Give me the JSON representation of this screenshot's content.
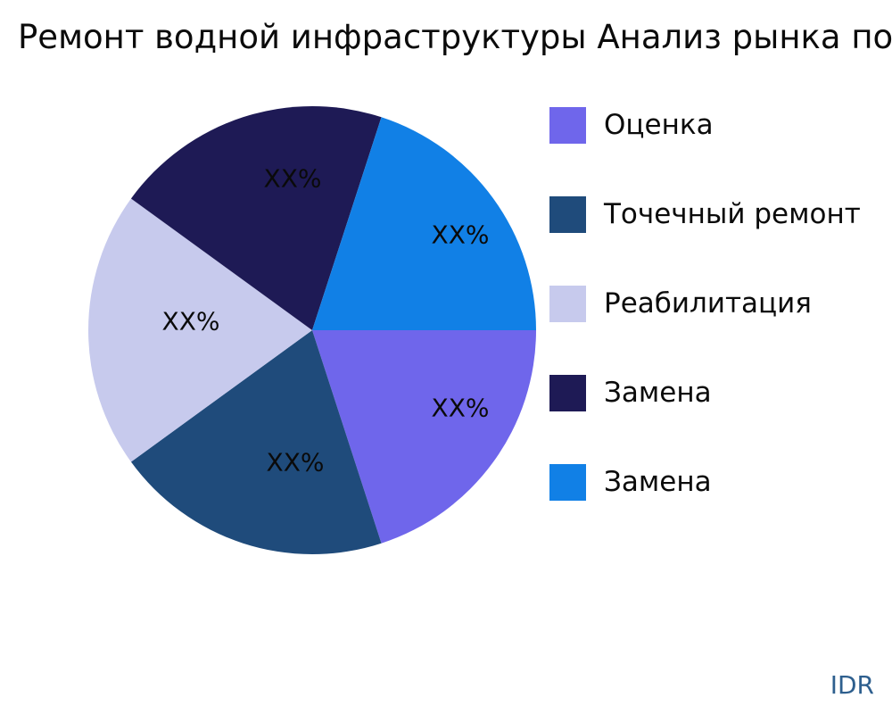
{
  "chart": {
    "title": "Ремонт водной инфраструктуры Анализ рынка по тип"
  },
  "chart_data": {
    "type": "pie",
    "title": "Ремонт водной инфраструктуры Анализ рынка по тип",
    "direction": "clockwise",
    "start_angle_deg": 0,
    "legend_position": "right",
    "value_note": "percent values shown only as placeholder text XX%",
    "slices": [
      {
        "label": "Оценка",
        "value": 20,
        "pct_label": "XX%",
        "color": "#6f66eb"
      },
      {
        "label": "Точечный ремонт",
        "value": 20,
        "pct_label": "XX%",
        "color": "#1f4b7b"
      },
      {
        "label": "Реабилитация",
        "value": 20,
        "pct_label": "XX%",
        "color": "#c7caed"
      },
      {
        "label": "Замена",
        "value": 20,
        "pct_label": "XX%",
        "color": "#1e1a55"
      },
      {
        "label": "Замена",
        "value": 20,
        "pct_label": "XX%",
        "color": "#1180e6"
      }
    ]
  },
  "footer": {
    "watermark": "IDR"
  }
}
